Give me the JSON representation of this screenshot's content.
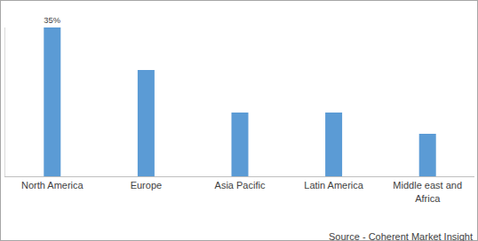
{
  "chart_data": {
    "type": "bar",
    "categories": [
      "North America",
      "Europe",
      "Asia Pacific",
      "Latin America",
      "Middle east and Africa"
    ],
    "values": [
      35,
      25,
      15,
      15,
      10
    ],
    "data_labels": true,
    "value_labels": [
      "35%",
      null,
      null,
      null,
      null
    ],
    "color": "#5b9bd5",
    "ylim": [
      0,
      35
    ],
    "yticks": [],
    "tick_labels": "x",
    "grid": false,
    "source": "Source - Coherent Market Insight"
  }
}
